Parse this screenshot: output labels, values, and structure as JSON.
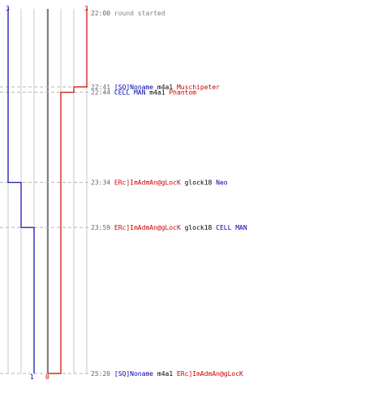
{
  "colors": {
    "background": "#ffffff",
    "team_a": "#0000aa",
    "team_b": "#cc0000",
    "gridline": "#c8c8c8",
    "center_line": "#808080",
    "dashed": "#b4b4b4",
    "time": "#666666",
    "weapon": "#000000",
    "start_text": "#808080"
  },
  "chart_data": {
    "type": "line",
    "title": "",
    "series": [
      {
        "team": "team_a",
        "start_count": 3,
        "end_count": 1,
        "start_label": "3",
        "end_label": "1",
        "steps": [
          {
            "time": "23:34",
            "count": 2
          },
          {
            "time": "23:59",
            "count": 1
          }
        ]
      },
      {
        "team": "team_b",
        "start_count": 3,
        "end_count": 0,
        "start_label": "3",
        "end_label": "0",
        "steps": [
          {
            "time": "22:41",
            "count": 2
          },
          {
            "time": "22:44",
            "count": 1
          },
          {
            "time": "25:20",
            "count": 0
          }
        ]
      }
    ],
    "events": [
      {
        "time": "22:00",
        "kind": "start",
        "text": "round started"
      },
      {
        "time": "22:41",
        "kind": "kill",
        "killer": "[SQ]Noname",
        "killer_team": "team_a",
        "weapon": "m4a1",
        "victim": "Muschipeter",
        "victim_team": "team_b"
      },
      {
        "time": "22:44",
        "kind": "kill",
        "killer": "CELL MAN",
        "killer_team": "team_a",
        "weapon": "m4a1",
        "victim": "Phantom",
        "victim_team": "team_b"
      },
      {
        "time": "23:34",
        "kind": "kill",
        "killer": "ERc]ImAdmAn@gLocK",
        "killer_team": "team_b",
        "weapon": "glock18",
        "victim": "Neo",
        "victim_team": "team_a"
      },
      {
        "time": "23:59",
        "kind": "kill",
        "killer": "ERc]ImAdmAn@gLocK",
        "killer_team": "team_b",
        "weapon": "glock18",
        "victim": "CELL MAN",
        "victim_team": "team_a"
      },
      {
        "time": "25:20",
        "kind": "kill",
        "killer": "[SQ]Noname",
        "killer_team": "team_a",
        "weapon": "m4a1",
        "victim": "ERc]ImAdmAn@gLocK",
        "victim_team": "team_b"
      }
    ]
  }
}
